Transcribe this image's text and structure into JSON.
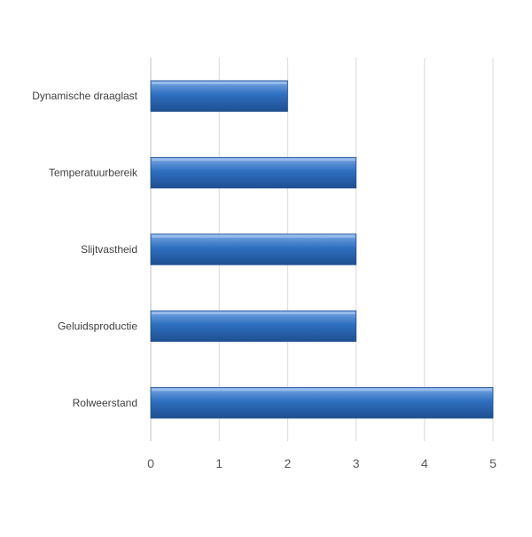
{
  "chart_data": {
    "type": "bar",
    "orientation": "horizontal",
    "categories": [
      "Dynamische draaglast",
      "Temperatuurbereik",
      "Slijtvastheid",
      "Geluidsproductie",
      "Rolweerstand"
    ],
    "values": [
      2,
      3,
      3,
      3,
      5
    ],
    "xlim": [
      0,
      5
    ],
    "x_ticks": [
      "0",
      "1",
      "2",
      "3",
      "4",
      "5"
    ],
    "grid": true,
    "legend": "none",
    "bar_color": "#2e6fbf",
    "bar_color_light": "#7aa8e6",
    "bar_color_dark": "#1f4f91"
  }
}
